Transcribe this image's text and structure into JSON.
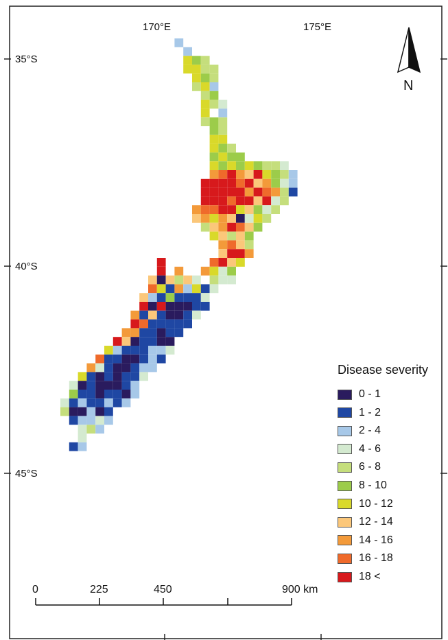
{
  "legend": {
    "title": "Disease severity",
    "classes": [
      {
        "label": "0 - 1",
        "color": "#2a1b5e"
      },
      {
        "label": "1 - 2",
        "color": "#1f47a3"
      },
      {
        "label": "2 - 4",
        "color": "#a7c8e8"
      },
      {
        "label": "4 - 6",
        "color": "#d4ead0"
      },
      {
        "label": "6 - 8",
        "color": "#c5de7c"
      },
      {
        "label": "8 - 10",
        "color": "#9ccc4a"
      },
      {
        "label": "10 - 12",
        "color": "#d9d92a"
      },
      {
        "label": "12 - 14",
        "color": "#fbc77a"
      },
      {
        "label": "14 - 16",
        "color": "#f39a3a"
      },
      {
        "label": "16 - 18",
        "color": "#ef6a2b"
      },
      {
        "label": "18 <",
        "color": "#d7191c"
      }
    ]
  },
  "graticule": {
    "longitudes": [
      "170°E",
      "175°E"
    ],
    "latitudes": [
      "35°S",
      "40°S",
      "45°S"
    ]
  },
  "north_arrow": {
    "label": "N"
  },
  "scale_bar": {
    "labels": [
      "0",
      "225",
      "450",
      "900 km"
    ]
  },
  "map_data": {
    "type": "grid",
    "note_classes": "cell value = index into legend.classes",
    "cells": [
      [
        13,
        0,
        2
      ],
      [
        14,
        1,
        2
      ],
      [
        14,
        2,
        6
      ],
      [
        15,
        2,
        5
      ],
      [
        16,
        2,
        4
      ],
      [
        14,
        3,
        6
      ],
      [
        15,
        3,
        6
      ],
      [
        16,
        3,
        4
      ],
      [
        17,
        3,
        4
      ],
      [
        15,
        4,
        6
      ],
      [
        16,
        4,
        5
      ],
      [
        17,
        4,
        4
      ],
      [
        15,
        5,
        4
      ],
      [
        16,
        5,
        6
      ],
      [
        17,
        5,
        2
      ],
      [
        16,
        6,
        4
      ],
      [
        17,
        6,
        5
      ],
      [
        16,
        7,
        6
      ],
      [
        17,
        7,
        4
      ],
      [
        18,
        7,
        3
      ],
      [
        16,
        8,
        6
      ],
      [
        18,
        8,
        2
      ],
      [
        16,
        9,
        4
      ],
      [
        17,
        9,
        5
      ],
      [
        18,
        9,
        4
      ],
      [
        17,
        10,
        5
      ],
      [
        18,
        10,
        4
      ],
      [
        17,
        11,
        6
      ],
      [
        18,
        11,
        6
      ],
      [
        17,
        12,
        6
      ],
      [
        18,
        12,
        5
      ],
      [
        19,
        12,
        4
      ],
      [
        17,
        13,
        5
      ],
      [
        18,
        13,
        6
      ],
      [
        19,
        13,
        5
      ],
      [
        20,
        13,
        5
      ],
      [
        17,
        14,
        6
      ],
      [
        18,
        14,
        5
      ],
      [
        19,
        14,
        6
      ],
      [
        20,
        14,
        5
      ],
      [
        21,
        14,
        6
      ],
      [
        22,
        14,
        5
      ],
      [
        23,
        14,
        4
      ],
      [
        24,
        14,
        4
      ],
      [
        25,
        14,
        3
      ],
      [
        17,
        15,
        8
      ],
      [
        18,
        15,
        9
      ],
      [
        19,
        15,
        10
      ],
      [
        20,
        15,
        8
      ],
      [
        21,
        15,
        7
      ],
      [
        22,
        15,
        10
      ],
      [
        23,
        15,
        6
      ],
      [
        24,
        15,
        5
      ],
      [
        25,
        15,
        4
      ],
      [
        26,
        15,
        2
      ],
      [
        16,
        16,
        10
      ],
      [
        17,
        16,
        10
      ],
      [
        18,
        16,
        10
      ],
      [
        19,
        16,
        10
      ],
      [
        20,
        16,
        9
      ],
      [
        21,
        16,
        10
      ],
      [
        22,
        16,
        7
      ],
      [
        23,
        16,
        8
      ],
      [
        24,
        16,
        5
      ],
      [
        25,
        16,
        3
      ],
      [
        26,
        16,
        2
      ],
      [
        16,
        17,
        10
      ],
      [
        17,
        17,
        10
      ],
      [
        18,
        17,
        10
      ],
      [
        19,
        17,
        10
      ],
      [
        20,
        17,
        10
      ],
      [
        21,
        17,
        8
      ],
      [
        22,
        17,
        10
      ],
      [
        23,
        17,
        9
      ],
      [
        24,
        17,
        8
      ],
      [
        25,
        17,
        4
      ],
      [
        26,
        17,
        1
      ],
      [
        16,
        18,
        10
      ],
      [
        17,
        18,
        10
      ],
      [
        18,
        18,
        10
      ],
      [
        19,
        18,
        9
      ],
      [
        20,
        18,
        10
      ],
      [
        21,
        18,
        10
      ],
      [
        22,
        18,
        7
      ],
      [
        23,
        18,
        10
      ],
      [
        24,
        18,
        3
      ],
      [
        25,
        18,
        4
      ],
      [
        15,
        19,
        8
      ],
      [
        16,
        19,
        9
      ],
      [
        17,
        19,
        9
      ],
      [
        18,
        19,
        10
      ],
      [
        19,
        19,
        10
      ],
      [
        20,
        19,
        6
      ],
      [
        21,
        19,
        7
      ],
      [
        22,
        19,
        5
      ],
      [
        23,
        19,
        3
      ],
      [
        24,
        19,
        4
      ],
      [
        15,
        20,
        7
      ],
      [
        16,
        20,
        8
      ],
      [
        17,
        20,
        6
      ],
      [
        18,
        20,
        8
      ],
      [
        19,
        20,
        7
      ],
      [
        20,
        20,
        0
      ],
      [
        21,
        20,
        3
      ],
      [
        22,
        20,
        6
      ],
      [
        23,
        20,
        4
      ],
      [
        16,
        21,
        4
      ],
      [
        17,
        21,
        7
      ],
      [
        18,
        21,
        8
      ],
      [
        19,
        21,
        10
      ],
      [
        20,
        21,
        9
      ],
      [
        21,
        21,
        7
      ],
      [
        22,
        21,
        5
      ],
      [
        17,
        22,
        6
      ],
      [
        18,
        22,
        7
      ],
      [
        19,
        22,
        4
      ],
      [
        20,
        22,
        7
      ],
      [
        21,
        22,
        5
      ],
      [
        18,
        23,
        8
      ],
      [
        19,
        23,
        9
      ],
      [
        20,
        23,
        7
      ],
      [
        21,
        23,
        4
      ],
      [
        18,
        24,
        7
      ],
      [
        19,
        24,
        10
      ],
      [
        20,
        24,
        10
      ],
      [
        21,
        24,
        8
      ],
      [
        11,
        25,
        10
      ],
      [
        17,
        25,
        9
      ],
      [
        18,
        25,
        10
      ],
      [
        19,
        25,
        7
      ],
      [
        20,
        25,
        6
      ],
      [
        11,
        26,
        10
      ],
      [
        13,
        26,
        8
      ],
      [
        16,
        26,
        8
      ],
      [
        17,
        26,
        6
      ],
      [
        18,
        26,
        3
      ],
      [
        19,
        26,
        5
      ],
      [
        10,
        27,
        7
      ],
      [
        11,
        27,
        0
      ],
      [
        12,
        27,
        7
      ],
      [
        13,
        27,
        4
      ],
      [
        14,
        27,
        7
      ],
      [
        15,
        27,
        3
      ],
      [
        17,
        27,
        4
      ],
      [
        18,
        27,
        3
      ],
      [
        19,
        27,
        3
      ],
      [
        10,
        28,
        9
      ],
      [
        11,
        28,
        6
      ],
      [
        12,
        28,
        1
      ],
      [
        13,
        28,
        8
      ],
      [
        14,
        28,
        2
      ],
      [
        15,
        28,
        6
      ],
      [
        16,
        28,
        1
      ],
      [
        17,
        28,
        3
      ],
      [
        9,
        29,
        7
      ],
      [
        10,
        29,
        2
      ],
      [
        11,
        29,
        1
      ],
      [
        12,
        29,
        5
      ],
      [
        13,
        29,
        1
      ],
      [
        14,
        29,
        1
      ],
      [
        15,
        29,
        1
      ],
      [
        16,
        29,
        3
      ],
      [
        9,
        30,
        10
      ],
      [
        10,
        30,
        0
      ],
      [
        11,
        30,
        10
      ],
      [
        12,
        30,
        0
      ],
      [
        13,
        30,
        0
      ],
      [
        14,
        30,
        0
      ],
      [
        15,
        30,
        1
      ],
      [
        16,
        30,
        1
      ],
      [
        8,
        31,
        8
      ],
      [
        9,
        31,
        1
      ],
      [
        10,
        31,
        7
      ],
      [
        11,
        31,
        1
      ],
      [
        12,
        31,
        0
      ],
      [
        13,
        31,
        0
      ],
      [
        14,
        31,
        1
      ],
      [
        15,
        31,
        3
      ],
      [
        8,
        32,
        10
      ],
      [
        9,
        32,
        9
      ],
      [
        10,
        32,
        1
      ],
      [
        11,
        32,
        1
      ],
      [
        12,
        32,
        1
      ],
      [
        13,
        32,
        1
      ],
      [
        14,
        32,
        1
      ],
      [
        7,
        33,
        8
      ],
      [
        8,
        33,
        8
      ],
      [
        9,
        33,
        1
      ],
      [
        10,
        33,
        1
      ],
      [
        11,
        33,
        0
      ],
      [
        12,
        33,
        1
      ],
      [
        13,
        33,
        1
      ],
      [
        6,
        34,
        10
      ],
      [
        7,
        34,
        7
      ],
      [
        8,
        34,
        0
      ],
      [
        9,
        34,
        1
      ],
      [
        10,
        34,
        1
      ],
      [
        11,
        34,
        0
      ],
      [
        12,
        34,
        0
      ],
      [
        5,
        35,
        6
      ],
      [
        6,
        35,
        2
      ],
      [
        7,
        35,
        1
      ],
      [
        8,
        35,
        1
      ],
      [
        9,
        35,
        1
      ],
      [
        10,
        35,
        2
      ],
      [
        11,
        35,
        2
      ],
      [
        12,
        35,
        3
      ],
      [
        4,
        36,
        9
      ],
      [
        5,
        36,
        1
      ],
      [
        6,
        36,
        1
      ],
      [
        7,
        36,
        0
      ],
      [
        8,
        36,
        0
      ],
      [
        9,
        36,
        1
      ],
      [
        10,
        36,
        2
      ],
      [
        11,
        36,
        1
      ],
      [
        3,
        37,
        8
      ],
      [
        4,
        37,
        3
      ],
      [
        5,
        37,
        1
      ],
      [
        6,
        37,
        0
      ],
      [
        7,
        37,
        0
      ],
      [
        8,
        37,
        1
      ],
      [
        9,
        37,
        2
      ],
      [
        10,
        37,
        2
      ],
      [
        2,
        38,
        6
      ],
      [
        3,
        38,
        1
      ],
      [
        4,
        38,
        0
      ],
      [
        5,
        38,
        1
      ],
      [
        6,
        38,
        0
      ],
      [
        7,
        38,
        1
      ],
      [
        8,
        38,
        1
      ],
      [
        9,
        38,
        3
      ],
      [
        1,
        39,
        3
      ],
      [
        2,
        39,
        0
      ],
      [
        3,
        39,
        1
      ],
      [
        4,
        39,
        0
      ],
      [
        5,
        39,
        0
      ],
      [
        6,
        39,
        0
      ],
      [
        7,
        39,
        1
      ],
      [
        8,
        39,
        2
      ],
      [
        1,
        40,
        5
      ],
      [
        2,
        40,
        1
      ],
      [
        3,
        40,
        1
      ],
      [
        4,
        40,
        0
      ],
      [
        5,
        40,
        1
      ],
      [
        6,
        40,
        1
      ],
      [
        7,
        40,
        0
      ],
      [
        8,
        40,
        2
      ],
      [
        0,
        41,
        3
      ],
      [
        1,
        41,
        1
      ],
      [
        2,
        41,
        2
      ],
      [
        3,
        41,
        1
      ],
      [
        4,
        41,
        1
      ],
      [
        5,
        41,
        2
      ],
      [
        6,
        41,
        1
      ],
      [
        7,
        41,
        2
      ],
      [
        0,
        42,
        4
      ],
      [
        1,
        42,
        0
      ],
      [
        2,
        42,
        0
      ],
      [
        3,
        42,
        2
      ],
      [
        4,
        42,
        0
      ],
      [
        5,
        42,
        1
      ],
      [
        1,
        43,
        1
      ],
      [
        2,
        43,
        2
      ],
      [
        3,
        43,
        2
      ],
      [
        4,
        43,
        3
      ],
      [
        5,
        43,
        2
      ],
      [
        2,
        44,
        3
      ],
      [
        3,
        44,
        4
      ],
      [
        4,
        44,
        2
      ],
      [
        2,
        45,
        3
      ],
      [
        1,
        46,
        1
      ],
      [
        2,
        46,
        2
      ]
    ]
  }
}
